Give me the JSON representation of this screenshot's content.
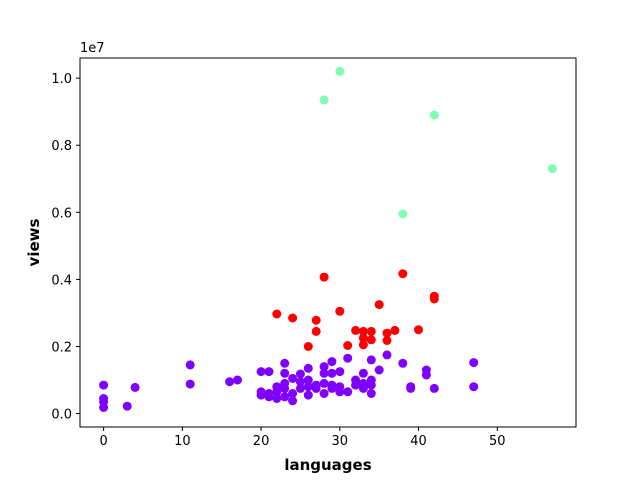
{
  "chart_data": {
    "type": "scatter",
    "title": "",
    "xlabel": "languages",
    "ylabel": "views",
    "y_offset_label": "1e7",
    "xlim": [
      -3,
      60
    ],
    "ylim": [
      -0.4,
      10.6
    ],
    "y_scale_factor": 10000000,
    "x_ticks": [
      0,
      10,
      20,
      30,
      40,
      50
    ],
    "y_ticks": [
      0.0,
      0.2,
      0.4,
      0.6,
      0.8,
      1.0
    ],
    "y_tick_labels": [
      "0.0",
      "0.2",
      "0.4",
      "0.6",
      "0.8",
      "1.0"
    ],
    "grid": false,
    "legend": false,
    "colors": {
      "cluster_0": "#8000ff",
      "cluster_1": "#ff0000",
      "cluster_2": "#80ffb4"
    },
    "series": [
      {
        "color_key": "cluster_2",
        "points": [
          [
            28,
            9.35
          ],
          [
            30,
            10.2
          ],
          [
            42,
            8.9
          ],
          [
            57,
            7.3
          ],
          [
            38,
            5.95
          ]
        ]
      },
      {
        "color_key": "cluster_1",
        "points": [
          [
            22,
            2.97
          ],
          [
            24,
            2.85
          ],
          [
            26,
            2.0
          ],
          [
            27,
            2.78
          ],
          [
            27,
            2.45
          ],
          [
            28,
            4.07
          ],
          [
            30,
            3.05
          ],
          [
            31,
            2.03
          ],
          [
            32,
            2.48
          ],
          [
            33,
            2.45
          ],
          [
            33,
            2.25
          ],
          [
            33,
            2.05
          ],
          [
            34,
            2.45
          ],
          [
            34,
            2.2
          ],
          [
            35,
            3.25
          ],
          [
            36,
            2.4
          ],
          [
            36,
            2.18
          ],
          [
            37,
            2.48
          ],
          [
            38,
            4.17
          ],
          [
            40,
            2.5
          ],
          [
            42,
            3.5
          ],
          [
            42,
            3.42
          ]
        ]
      },
      {
        "color_key": "cluster_0",
        "points": [
          [
            0,
            0.85
          ],
          [
            0,
            0.45
          ],
          [
            0,
            0.35
          ],
          [
            0,
            0.18
          ],
          [
            3,
            0.22
          ],
          [
            4,
            0.78
          ],
          [
            11,
            1.45
          ],
          [
            11,
            0.88
          ],
          [
            16,
            0.95
          ],
          [
            17,
            1.0
          ],
          [
            20,
            1.25
          ],
          [
            20,
            0.65
          ],
          [
            20,
            0.55
          ],
          [
            21,
            1.25
          ],
          [
            21,
            0.6
          ],
          [
            21,
            0.5
          ],
          [
            22,
            0.8
          ],
          [
            22,
            0.65
          ],
          [
            22,
            0.45
          ],
          [
            23,
            1.5
          ],
          [
            23,
            1.2
          ],
          [
            23,
            0.9
          ],
          [
            23,
            0.75
          ],
          [
            23,
            0.5
          ],
          [
            24,
            1.05
          ],
          [
            24,
            0.6
          ],
          [
            24,
            0.38
          ],
          [
            25,
            1.18
          ],
          [
            25,
            0.95
          ],
          [
            25,
            0.75
          ],
          [
            26,
            1.35
          ],
          [
            26,
            1.0
          ],
          [
            26,
            0.8
          ],
          [
            26,
            0.55
          ],
          [
            27,
            0.85
          ],
          [
            27,
            0.75
          ],
          [
            28,
            1.4
          ],
          [
            28,
            1.2
          ],
          [
            28,
            0.9
          ],
          [
            28,
            0.6
          ],
          [
            29,
            1.55
          ],
          [
            29,
            1.2
          ],
          [
            29,
            0.85
          ],
          [
            29,
            0.75
          ],
          [
            30,
            1.25
          ],
          [
            30,
            0.8
          ],
          [
            30,
            0.65
          ],
          [
            31,
            1.65
          ],
          [
            31,
            0.65
          ],
          [
            32,
            1.0
          ],
          [
            32,
            0.85
          ],
          [
            33,
            1.2
          ],
          [
            33,
            0.9
          ],
          [
            33,
            0.75
          ],
          [
            34,
            1.6
          ],
          [
            34,
            1.0
          ],
          [
            34,
            0.85
          ],
          [
            34,
            0.6
          ],
          [
            35,
            1.3
          ],
          [
            36,
            1.75
          ],
          [
            38,
            1.5
          ],
          [
            39,
            0.8
          ],
          [
            39,
            0.75
          ],
          [
            41,
            1.3
          ],
          [
            41,
            1.15
          ],
          [
            42,
            0.75
          ],
          [
            47,
            1.52
          ],
          [
            47,
            0.8
          ]
        ]
      }
    ]
  }
}
